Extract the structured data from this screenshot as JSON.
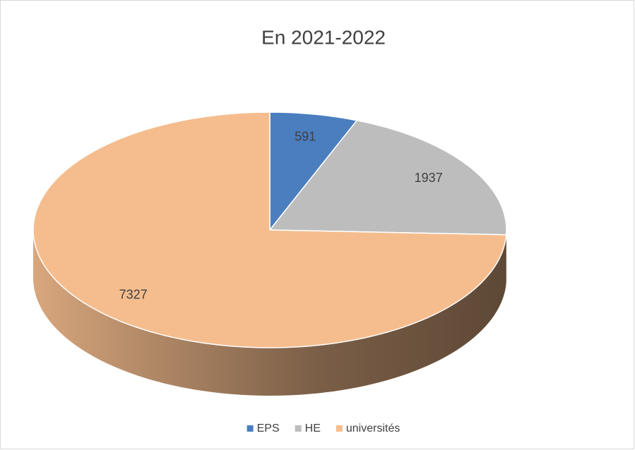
{
  "chart_data": {
    "type": "pie",
    "title": "En 2021-2022",
    "categories": [
      "EPS",
      "HE",
      "universités"
    ],
    "values": [
      591,
      1937,
      7327
    ],
    "colors": [
      "#4a7ebf",
      "#bdbdbd",
      "#f5bd8e"
    ],
    "legend": "bottom"
  }
}
